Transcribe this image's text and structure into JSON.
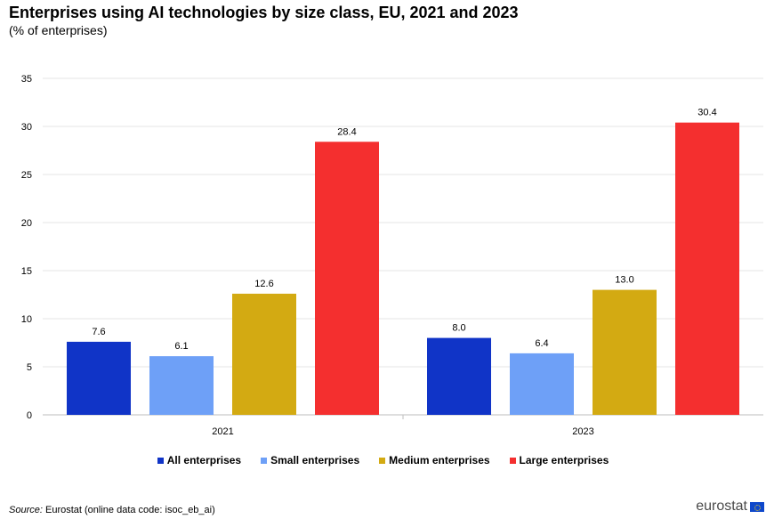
{
  "chart_data": {
    "type": "bar",
    "title": "Enterprises using AI technologies by size class, EU, 2021 and 2023",
    "subtitle": "(% of enterprises)",
    "categories": [
      "2021",
      "2023"
    ],
    "series": [
      {
        "name": "All enterprises",
        "color": "#1034c7",
        "values": [
          7.6,
          8.0
        ],
        "labels": [
          "7.6",
          "8.0"
        ]
      },
      {
        "name": "Small enterprises",
        "color": "#6ea0f7",
        "values": [
          6.1,
          6.4
        ],
        "labels": [
          "6.1",
          "6.4"
        ]
      },
      {
        "name": "Medium enterprises",
        "color": "#d3aa12",
        "values": [
          12.6,
          13.0
        ],
        "labels": [
          "12.6",
          "13.0"
        ]
      },
      {
        "name": "Large enterprises",
        "color": "#f42f2f",
        "values": [
          28.4,
          30.4
        ],
        "labels": [
          "28.4",
          "30.4"
        ]
      }
    ],
    "ylim": [
      0,
      35
    ],
    "yticks": [
      "0",
      "5",
      "10",
      "15",
      "20",
      "25",
      "30",
      "35"
    ],
    "grid": true,
    "legend": "bottom"
  },
  "footer": {
    "source_label": "Source:",
    "source_text": "Eurostat (online data code: isoc_eb_ai)",
    "logo_text": "eurostat"
  }
}
